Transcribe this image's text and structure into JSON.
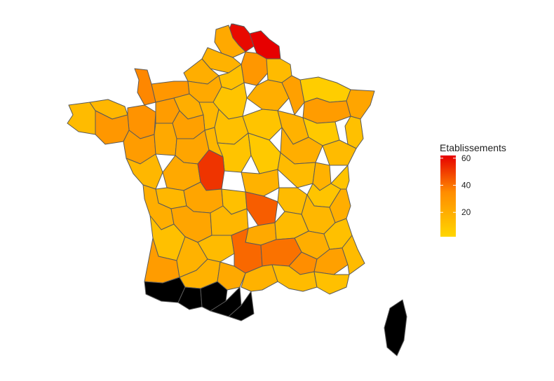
{
  "legend": {
    "title": "Etablissements",
    "ticks": [
      {
        "value": 60,
        "label": "60"
      },
      {
        "value": 40,
        "label": "40"
      },
      {
        "value": 20,
        "label": "20"
      }
    ],
    "range": [
      2,
      62
    ],
    "colors": {
      "low": "#ffd600",
      "mid": "#ff8c00",
      "high": "#e60000"
    }
  },
  "regions": [
    {
      "value": 62
    },
    {
      "value": 60
    },
    {
      "value": 22
    },
    {
      "value": 18
    },
    {
      "value": 30
    },
    {
      "value": 14
    },
    {
      "value": 20
    },
    {
      "value": 12
    },
    {
      "value": 36
    },
    {
      "value": 30
    },
    {
      "value": 22
    },
    {
      "value": 10
    },
    {
      "value": 20
    },
    {
      "value": 26
    },
    {
      "value": 6
    },
    {
      "value": 24
    },
    {
      "value": 28
    },
    {
      "value": 12
    },
    {
      "value": 14
    },
    {
      "value": 16
    },
    {
      "value": 32
    },
    {
      "value": 30
    },
    {
      "value": 28
    },
    {
      "value": 20
    },
    {
      "value": 16
    },
    {
      "value": 28
    },
    {
      "value": 26
    },
    {
      "value": 12
    },
    {
      "value": 10
    },
    {
      "value": 18
    },
    {
      "value": 8
    },
    {
      "value": 14
    },
    {
      "value": 20
    },
    {
      "value": 16
    },
    {
      "value": 22
    },
    {
      "value": 24
    },
    {
      "value": 16
    },
    {
      "value": 10
    },
    {
      "value": 8
    },
    {
      "value": 14
    },
    {
      "value": 18
    },
    {
      "value": 10
    },
    {
      "value": 10
    },
    {
      "value": 22
    },
    {
      "value": 52
    },
    {
      "value": 18
    },
    {
      "value": 14
    },
    {
      "value": 16
    },
    {
      "value": 20
    },
    {
      "value": 24
    },
    {
      "value": 12
    },
    {
      "value": 44
    },
    {
      "value": 16
    },
    {
      "value": 20
    },
    {
      "value": 12
    },
    {
      "value": 24
    },
    {
      "value": 16
    },
    {
      "value": 22
    },
    {
      "value": 14
    },
    {
      "value": 20
    },
    {
      "value": 12
    },
    {
      "value": 28
    },
    {
      "value": 18
    },
    {
      "value": 14
    },
    {
      "value": 42
    },
    {
      "value": 40
    },
    {
      "value": 34
    },
    {
      "value": 26
    },
    {
      "value": 14
    },
    {
      "value": 18
    },
    {
      "value": 22
    },
    {
      "value": 18
    },
    {
      "value": 14
    },
    {
      "value": 12
    }
  ]
}
